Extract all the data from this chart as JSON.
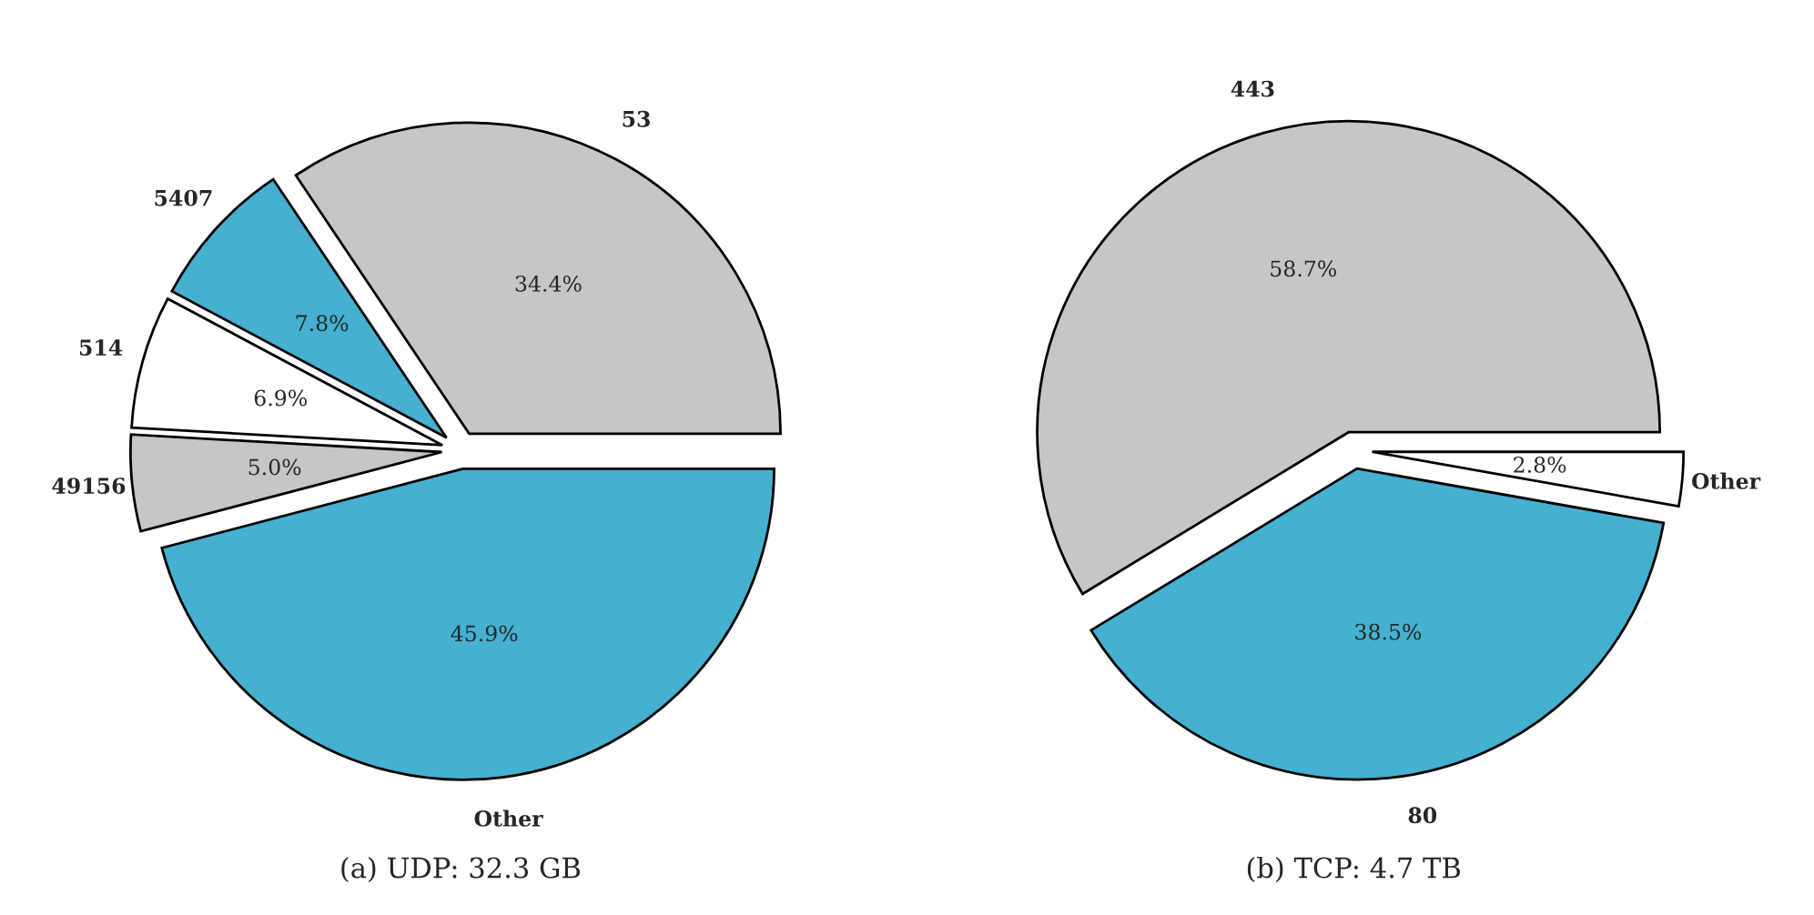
{
  "chart_data": [
    {
      "type": "pie",
      "title": "(a) UDP: 32.3 GB",
      "categories": [
        "53",
        "5407",
        "514",
        "49156",
        "Other"
      ],
      "values": [
        34.4,
        7.8,
        6.9,
        5.0,
        45.9
      ],
      "colors": [
        "#c5c6c8",
        "#45b0cf",
        "#ffffff",
        "#c5c6c8",
        "#45b0cf"
      ],
      "value_labels": [
        "34.4%",
        "7.8%",
        "6.9%",
        "5.0%",
        "45.9%"
      ],
      "legend": false
    },
    {
      "type": "pie",
      "title": "(b) TCP: 4.7 TB",
      "categories": [
        "443",
        "80",
        "Other"
      ],
      "values": [
        58.7,
        38.5,
        2.8
      ],
      "colors": [
        "#c5c6c8",
        "#45b0cf",
        "#ffffff"
      ],
      "value_labels": [
        "58.7%",
        "38.5%",
        "2.8%"
      ],
      "legend": false
    }
  ]
}
